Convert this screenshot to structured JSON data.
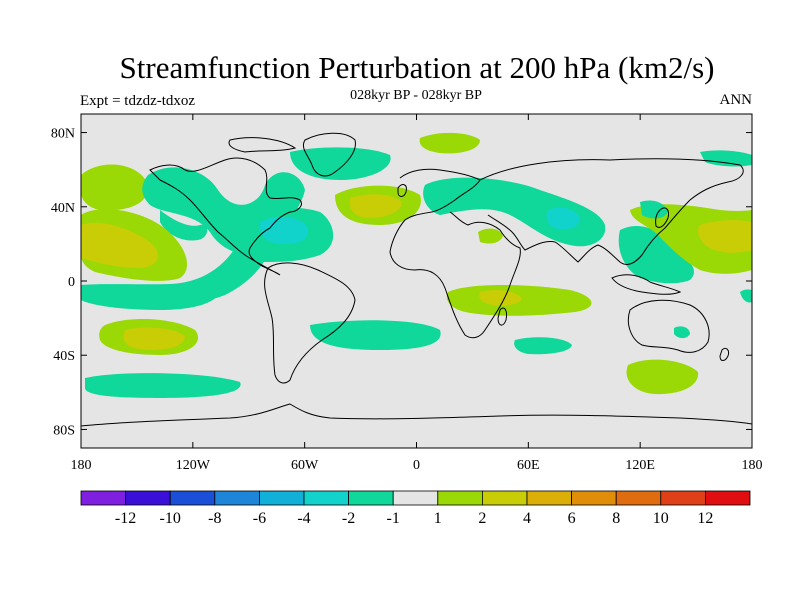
{
  "title": "Streamfunction Perturbation at 200 hPa (km2/s)",
  "subtitle": "028kyr BP - 028kyr BP",
  "left_label": "Expt = tdzdz-tdxoz",
  "right_label": "ANN",
  "map": {
    "projection": "cylindrical equidistant",
    "lon_range": [
      -180,
      180
    ],
    "lat_range": [
      -90,
      90
    ],
    "background_color": "#e5e5e5",
    "y_ticks": [
      {
        "lat": 80,
        "label": "80N"
      },
      {
        "lat": 40,
        "label": "40N"
      },
      {
        "lat": 0,
        "label": "0"
      },
      {
        "lat": -40,
        "label": "40S"
      },
      {
        "lat": -80,
        "label": "80S"
      }
    ],
    "x_ticks": [
      {
        "lon": -180,
        "label": "180"
      },
      {
        "lon": -120,
        "label": "120W"
      },
      {
        "lon": -60,
        "label": "60W"
      },
      {
        "lon": 0,
        "label": "0"
      },
      {
        "lon": 60,
        "label": "60E"
      },
      {
        "lon": 120,
        "label": "120E"
      },
      {
        "lon": 180,
        "label": "180"
      }
    ]
  },
  "colorbar": {
    "colors": [
      "#7f1fe0",
      "#3a10d8",
      "#1c4fd8",
      "#1e86d9",
      "#10b0d8",
      "#12d2cc",
      "#10d89a",
      "#e5e5e5",
      "#9ad806",
      "#c8cd06",
      "#dcae08",
      "#e08e0a",
      "#e06c10",
      "#e04018",
      "#e00e10"
    ],
    "labels": [
      "-12",
      "-10",
      "-8",
      "-6",
      "-4",
      "-2",
      "-1",
      "1",
      "2",
      "4",
      "6",
      "8",
      "10",
      "12"
    ]
  }
}
